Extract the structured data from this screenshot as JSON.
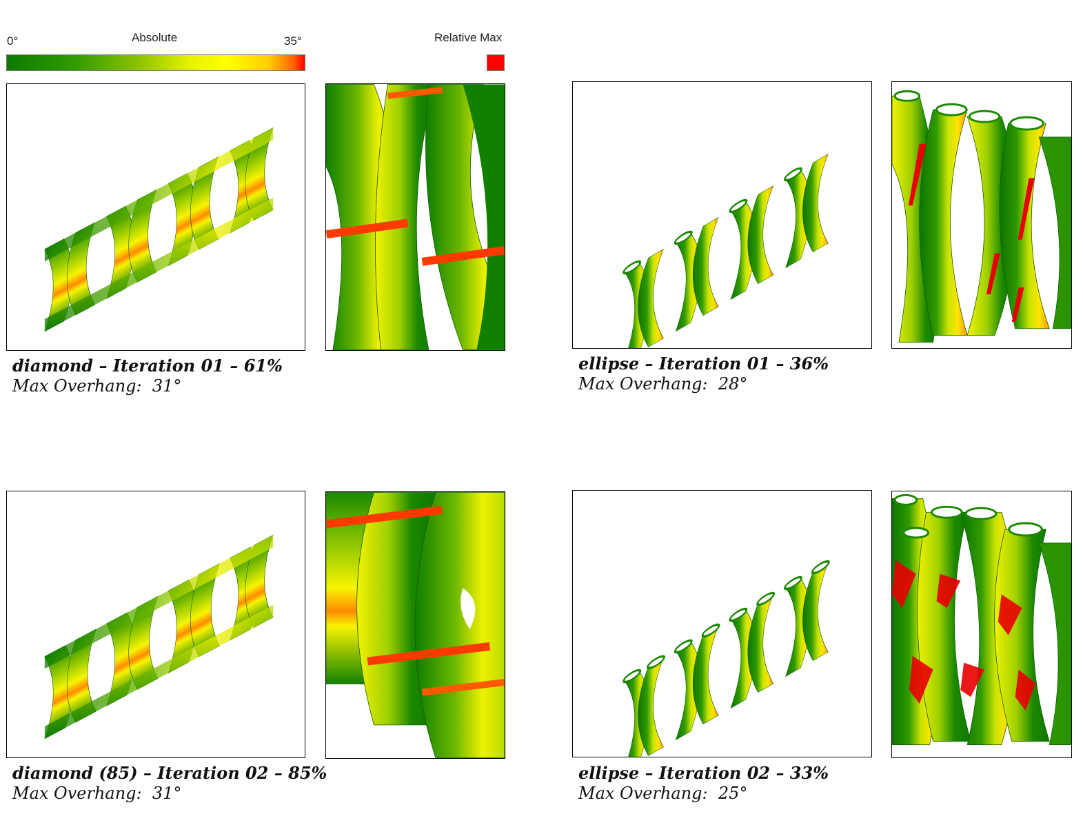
{
  "legend": {
    "min_label": "0°",
    "title": "Absolute",
    "max_label": "35°",
    "relative_label": "Relative Max",
    "gradient_colors": [
      "#0d7a00",
      "#8fc400",
      "#ffff00",
      "#ff6600",
      "#ff0000"
    ],
    "relative_color": "#ff0000"
  },
  "panels": [
    {
      "lattice": "diamond",
      "title": "diamond – Iteration 01 – 61%",
      "overhang_label": "Max Overhang:",
      "overhang_value": "31°"
    },
    {
      "lattice": "ellipse",
      "title": "ellipse – Iteration 01 – 36%",
      "overhang_label": "Max Overhang:",
      "overhang_value": "28°"
    },
    {
      "lattice": "diamond",
      "title": "diamond (85) – Iteration 02 – 85%",
      "overhang_label": "Max Overhang:",
      "overhang_value": "31°"
    },
    {
      "lattice": "ellipse",
      "title": "ellipse – Iteration 02 – 33%",
      "overhang_label": "Max Overhang:",
      "overhang_value": "25°"
    }
  ]
}
